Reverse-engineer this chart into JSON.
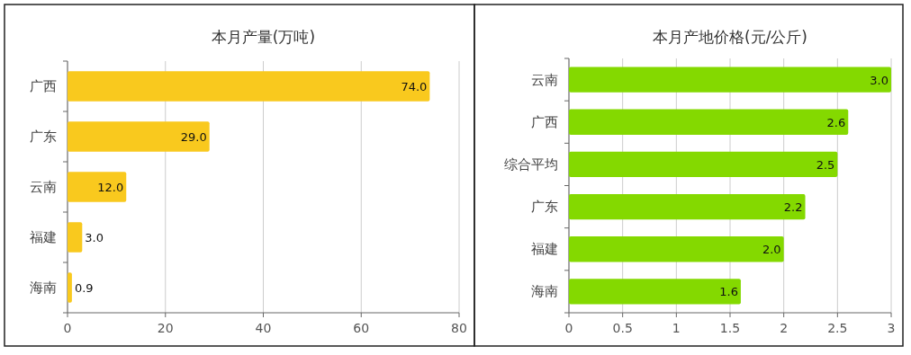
{
  "chart_data": [
    {
      "type": "bar",
      "orientation": "horizontal",
      "title": "本月产量(万吨)",
      "categories": [
        "广西",
        "广东",
        "云南",
        "福建",
        "海南"
      ],
      "values": [
        74.0,
        29.0,
        12.0,
        3.0,
        0.9
      ],
      "value_labels": [
        "74.0",
        "29.0",
        "12.0",
        "3.0",
        "0.9"
      ],
      "color": "#f9c91e",
      "xlim": [
        0,
        80
      ],
      "xticks": [
        0,
        20,
        40,
        60,
        80
      ],
      "grid": "x"
    },
    {
      "type": "bar",
      "orientation": "horizontal",
      "title": "本月产地价格(元/公斤)",
      "categories": [
        "云南",
        "广西",
        "综合平均",
        "广东",
        "福建",
        "海南"
      ],
      "values": [
        3.0,
        2.6,
        2.5,
        2.2,
        2.0,
        1.6
      ],
      "value_labels": [
        "3.0",
        "2.6",
        "2.5",
        "2.2",
        "2.0",
        "1.6"
      ],
      "color": "#84d900",
      "xlim": [
        0,
        3
      ],
      "xticks": [
        0,
        0.5,
        1,
        1.5,
        2,
        2.5,
        3
      ],
      "grid": "x"
    }
  ]
}
